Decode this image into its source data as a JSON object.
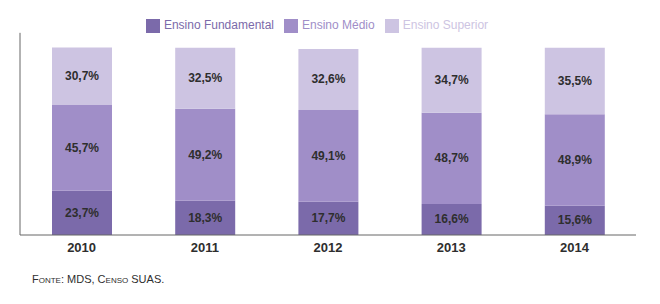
{
  "chart_data": {
    "type": "bar",
    "stacked": true,
    "categories": [
      "2010",
      "2011",
      "2012",
      "2013",
      "2014"
    ],
    "series": [
      {
        "name": "Ensino Fundamental",
        "color": "#7b6aaa",
        "values": [
          23.7,
          18.3,
          17.7,
          16.6,
          15.6
        ],
        "value_labels": [
          "23,7%",
          "18,3%",
          "17,7%",
          "16,6%",
          "15,6%"
        ]
      },
      {
        "name": "Ensino Médio",
        "color": "#a08ec8",
        "values": [
          45.7,
          49.2,
          49.1,
          48.7,
          48.9
        ],
        "value_labels": [
          "45,7%",
          "49,2%",
          "49,1%",
          "48,7%",
          "48,9%"
        ]
      },
      {
        "name": "Ensino Superior",
        "color": "#cdc4e2",
        "values": [
          30.7,
          32.5,
          32.6,
          34.7,
          35.5
        ],
        "value_labels": [
          "30,7%",
          "32,5%",
          "32,6%",
          "34,7%",
          "35,5%"
        ]
      }
    ],
    "ylim": [
      0,
      108
    ],
    "legend": "top",
    "grid": false,
    "data_labels": true,
    "tick_labels": "x",
    "annotations": [
      "Fonte: MDS, Censo SUAS."
    ]
  }
}
